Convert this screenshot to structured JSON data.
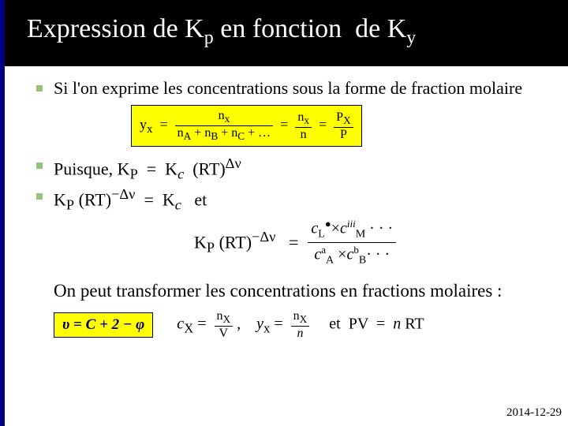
{
  "title_html": "Expression de K<sub>p</sub> en fonction&nbsp;&nbsp;de K<sub>y</sub>",
  "b1": "Si l'on exprime les concentrations sous la forme de fraction molaire",
  "formula_yellow_html": "y<sub>x</sub> &nbsp;=&nbsp; <span class='frac'><span class='num'>n<sub>x</sub></span><span class='den'>n<sub>A</sub> + n<sub>B</sub> + n<sub>C</sub> + …</span></span> &nbsp;=&nbsp; <span class='frac'><span class='num'>n<sub>x</sub></span><span class='den'>n</span></span> &nbsp;=&nbsp; <span class='frac'><span class='num'>P<sub>X</sub></span><span class='den'>P</span></span>",
  "b2_html": "Puisque, K<sub>P</sub> &nbsp;=&nbsp; K<sub><i>c</i></sub>&nbsp; (RT)<sup>&Delta;&nu;</sup>",
  "b3_html": "K<sub>P</sub> (RT)<sup>&minus;&Delta;&nu;</sup> &nbsp;=&nbsp; K<sub><i>c</i></sub>&nbsp;&nbsp; et",
  "eq_left_html": "K<sub>P</sub> (RT)<sup>&minus;&Delta;&nu;</sup> &nbsp;&nbsp;=",
  "eq_num_html": "<i>c</i><span class='sub'>L</span><span class='sup'>●</span>&times;<i>c</i><span class='sup'><i>iii</i></span><span class='sub'>M</span> · · ·",
  "eq_den_html": "<i>c</i><span class='sup'>a</span><span class='sub'>A</span>&nbsp;&times;<i>c</i><span class='sup'>b</span><span class='sub'>B</span>· · ·",
  "transform": "On peut transformer les concentrations en fractions molaires :",
  "upsilon_html": "&upsilon; = <i>C</i> + 2 &minus; &phi;",
  "bottom_eq_html": "<i>c</i><sub>X</sub> =&nbsp; <span class='frac'><span class='num'>n<sub>X</sub></span><span class='den'>V</span></span>&nbsp;,&nbsp;&nbsp;&nbsp; <i>y</i><sub>x</sub> =&nbsp; <span class='frac'><span class='num'>n<sub>X</sub></span><span class='den'><i>n</i></span></span>&nbsp;&nbsp;&nbsp;&nbsp; et&nbsp;&nbsp;PV &nbsp;=&nbsp; <i>n</i> RT",
  "date": "2014-12-29",
  "colors": {
    "title_bg": "#000000",
    "title_fg": "#ffffff",
    "highlight": "#ffff00",
    "bullet": "#93c47d",
    "accent_border": "#000080"
  }
}
